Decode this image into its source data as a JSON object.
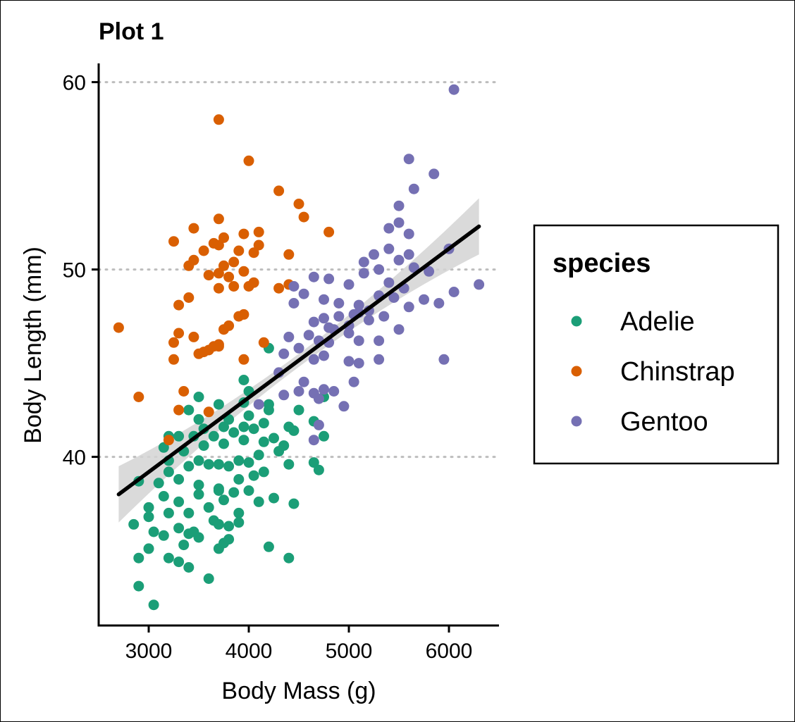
{
  "chart_data": {
    "type": "scatter",
    "title": "Plot 1",
    "xlabel": "Body Mass (g)",
    "ylabel": "Body Length (mm)",
    "xlim": [
      2500,
      6500
    ],
    "ylim": [
      31,
      61
    ],
    "xticks": [
      3000,
      4000,
      5000,
      6000
    ],
    "yticks": [
      40,
      50,
      60
    ],
    "grid": "horizontal dotted at major y ticks",
    "legend": {
      "title": "species",
      "placement": "right"
    },
    "trend_line": {
      "label": "linear fit with 95% confidence band",
      "x_range": [
        2700,
        6300
      ],
      "start": [
        2700,
        38.0
      ],
      "end": [
        6300,
        52.3
      ],
      "band_halfwidth_at_ends": 1.5,
      "band_halfwidth_at_center": 0.35,
      "color": "#000000",
      "band_color": "#d4d4d4"
    },
    "series": [
      {
        "name": "Adelie",
        "color": "#1b9e77",
        "points": [
          [
            3050,
            32.1
          ],
          [
            2900,
            33.1
          ],
          [
            3600,
            33.5
          ],
          [
            2900,
            34.6
          ],
          [
            3200,
            34.6
          ],
          [
            4400,
            34.6
          ],
          [
            3400,
            34.1
          ],
          [
            3300,
            34.4
          ],
          [
            3000,
            35.1
          ],
          [
            3150,
            35.8
          ],
          [
            3350,
            35.3
          ],
          [
            3400,
            35.9
          ],
          [
            3500,
            35.7
          ],
          [
            3700,
            35.1
          ],
          [
            3750,
            35.4
          ],
          [
            3800,
            35.6
          ],
          [
            4200,
            35.2
          ],
          [
            3050,
            36.0
          ],
          [
            3300,
            36.2
          ],
          [
            3450,
            36.0
          ],
          [
            3650,
            36.6
          ],
          [
            3700,
            36.4
          ],
          [
            3800,
            36.3
          ],
          [
            3900,
            36.5
          ],
          [
            2850,
            36.4
          ],
          [
            3000,
            36.8
          ],
          [
            3200,
            37.0
          ],
          [
            3400,
            37.0
          ],
          [
            3600,
            37.3
          ],
          [
            3750,
            37.7
          ],
          [
            3900,
            37.0
          ],
          [
            4100,
            37.6
          ],
          [
            4450,
            37.5
          ],
          [
            3000,
            37.3
          ],
          [
            3150,
            37.9
          ],
          [
            3300,
            37.6
          ],
          [
            3500,
            38.0
          ],
          [
            3700,
            38.2
          ],
          [
            3850,
            38.1
          ],
          [
            4000,
            38.2
          ],
          [
            4250,
            37.8
          ],
          [
            2900,
            38.7
          ],
          [
            3100,
            38.6
          ],
          [
            3300,
            38.8
          ],
          [
            3500,
            38.5
          ],
          [
            3700,
            38.3
          ],
          [
            3900,
            38.8
          ],
          [
            4050,
            39.0
          ],
          [
            3200,
            39.2
          ],
          [
            3400,
            39.5
          ],
          [
            3600,
            39.6
          ],
          [
            3800,
            39.5
          ],
          [
            4000,
            39.7
          ],
          [
            4150,
            39.2
          ],
          [
            4400,
            39.6
          ],
          [
            4650,
            39.7
          ],
          [
            4700,
            39.3
          ],
          [
            3200,
            39.8
          ],
          [
            3500,
            39.8
          ],
          [
            3700,
            39.6
          ],
          [
            3900,
            39.8
          ],
          [
            4100,
            40.1
          ],
          [
            4300,
            40.3
          ],
          [
            3150,
            40.5
          ],
          [
            3350,
            40.3
          ],
          [
            3550,
            40.6
          ],
          [
            3750,
            40.7
          ],
          [
            3950,
            40.9
          ],
          [
            4150,
            40.8
          ],
          [
            4350,
            40.6
          ],
          [
            3200,
            41.1
          ],
          [
            3450,
            41.1
          ],
          [
            3650,
            41.1
          ],
          [
            3850,
            41.3
          ],
          [
            4050,
            41.5
          ],
          [
            4250,
            41.0
          ],
          [
            4450,
            41.4
          ],
          [
            4750,
            41.1
          ],
          [
            3300,
            41.1
          ],
          [
            3550,
            41.5
          ],
          [
            3750,
            41.6
          ],
          [
            3950,
            41.6
          ],
          [
            4150,
            41.8
          ],
          [
            4400,
            41.6
          ],
          [
            4650,
            41.9
          ],
          [
            3500,
            42.0
          ],
          [
            3800,
            42.0
          ],
          [
            4000,
            42.2
          ],
          [
            4200,
            42.5
          ],
          [
            4500,
            42.5
          ],
          [
            3400,
            42.5
          ],
          [
            3700,
            42.8
          ],
          [
            3950,
            42.9
          ],
          [
            4200,
            42.8
          ],
          [
            3500,
            43.2
          ],
          [
            4000,
            43.5
          ],
          [
            4750,
            43.2
          ],
          [
            3950,
            44.1
          ],
          [
            4200,
            45.8
          ]
        ]
      },
      {
        "name": "Chinstrap",
        "color": "#d95f02",
        "points": [
          [
            2700,
            46.9
          ],
          [
            2900,
            43.2
          ],
          [
            3200,
            40.9
          ],
          [
            3250,
            46.1
          ],
          [
            3250,
            45.2
          ],
          [
            3300,
            46.6
          ],
          [
            3350,
            43.5
          ],
          [
            3300,
            42.5
          ],
          [
            3600,
            42.4
          ],
          [
            3450,
            46.4
          ],
          [
            3500,
            45.5
          ],
          [
            3600,
            45.7
          ],
          [
            3650,
            45.9
          ],
          [
            3700,
            46.0
          ],
          [
            3750,
            46.8
          ],
          [
            3800,
            47.0
          ],
          [
            3550,
            45.6
          ],
          [
            3700,
            45.9
          ],
          [
            3900,
            47.5
          ],
          [
            3950,
            47.6
          ],
          [
            3950,
            45.2
          ],
          [
            4150,
            46.1
          ],
          [
            3300,
            48.1
          ],
          [
            3400,
            48.5
          ],
          [
            3700,
            49.0
          ],
          [
            3850,
            49.1
          ],
          [
            4000,
            49.1
          ],
          [
            3600,
            49.7
          ],
          [
            3700,
            49.8
          ],
          [
            3800,
            49.6
          ],
          [
            3950,
            49.9
          ],
          [
            4050,
            49.3
          ],
          [
            3400,
            50.2
          ],
          [
            3450,
            50.5
          ],
          [
            3750,
            50.2
          ],
          [
            3850,
            50.4
          ],
          [
            3900,
            51.0
          ],
          [
            4050,
            50.9
          ],
          [
            4100,
            51.3
          ],
          [
            4400,
            50.8
          ],
          [
            3250,
            51.5
          ],
          [
            3550,
            51.0
          ],
          [
            3650,
            51.4
          ],
          [
            3700,
            51.3
          ],
          [
            3750,
            51.7
          ],
          [
            3950,
            51.9
          ],
          [
            4100,
            52.0
          ],
          [
            4800,
            52.0
          ],
          [
            3450,
            52.2
          ],
          [
            3700,
            52.7
          ],
          [
            4300,
            49.0
          ],
          [
            4400,
            49.2
          ],
          [
            4550,
            52.8
          ],
          [
            4500,
            53.5
          ],
          [
            4300,
            54.2
          ],
          [
            4000,
            55.8
          ],
          [
            3700,
            58.0
          ]
        ]
      },
      {
        "name": "Gentoo",
        "color": "#7570b3",
        "points": [
          [
            4100,
            42.8
          ],
          [
            4350,
            43.3
          ],
          [
            4500,
            43.5
          ],
          [
            4650,
            43.4
          ],
          [
            4750,
            43.6
          ],
          [
            4550,
            44.0
          ],
          [
            4700,
            43.1
          ],
          [
            4700,
            41.7
          ],
          [
            4650,
            40.9
          ],
          [
            4850,
            43.5
          ],
          [
            5050,
            44.0
          ],
          [
            4950,
            42.7
          ],
          [
            4300,
            44.5
          ],
          [
            4350,
            45.5
          ],
          [
            4500,
            45.8
          ],
          [
            4650,
            45.2
          ],
          [
            4750,
            45.4
          ],
          [
            4800,
            46.1
          ],
          [
            5000,
            45.1
          ],
          [
            5100,
            45.0
          ],
          [
            5300,
            45.2
          ],
          [
            4400,
            46.4
          ],
          [
            4600,
            46.5
          ],
          [
            4700,
            46.2
          ],
          [
            4850,
            46.8
          ],
          [
            5000,
            46.6
          ],
          [
            5100,
            46.2
          ],
          [
            5300,
            46.2
          ],
          [
            5500,
            46.8
          ],
          [
            4650,
            47.2
          ],
          [
            4750,
            47.4
          ],
          [
            4900,
            47.5
          ],
          [
            5050,
            47.6
          ],
          [
            5200,
            47.3
          ],
          [
            5350,
            47.5
          ],
          [
            4450,
            48.2
          ],
          [
            4550,
            48.7
          ],
          [
            4750,
            48.4
          ],
          [
            4900,
            48.2
          ],
          [
            5100,
            48.1
          ],
          [
            5300,
            48.6
          ],
          [
            5450,
            48.5
          ],
          [
            5600,
            48.0
          ],
          [
            4450,
            49.1
          ],
          [
            4650,
            49.6
          ],
          [
            4800,
            49.5
          ],
          [
            5000,
            49.2
          ],
          [
            5150,
            49.8
          ],
          [
            5400,
            49.3
          ],
          [
            5550,
            49.0
          ],
          [
            5750,
            48.4
          ],
          [
            5900,
            48.2
          ],
          [
            6050,
            48.8
          ],
          [
            5150,
            50.4
          ],
          [
            5300,
            50.0
          ],
          [
            5500,
            50.5
          ],
          [
            5650,
            50.1
          ],
          [
            5800,
            49.9
          ],
          [
            5250,
            50.8
          ],
          [
            5400,
            51.1
          ],
          [
            5600,
            50.8
          ],
          [
            6000,
            51.1
          ],
          [
            5400,
            52.2
          ],
          [
            5600,
            51.9
          ],
          [
            5500,
            52.5
          ],
          [
            5500,
            53.4
          ],
          [
            5650,
            54.3
          ],
          [
            5850,
            55.1
          ],
          [
            5600,
            55.9
          ],
          [
            6050,
            59.6
          ],
          [
            6300,
            49.2
          ],
          [
            5950,
            45.2
          ],
          [
            5200,
            47.8
          ],
          [
            5000,
            47.0
          ],
          [
            4800,
            46.9
          ],
          [
            5100,
            47.7
          ]
        ]
      }
    ]
  }
}
